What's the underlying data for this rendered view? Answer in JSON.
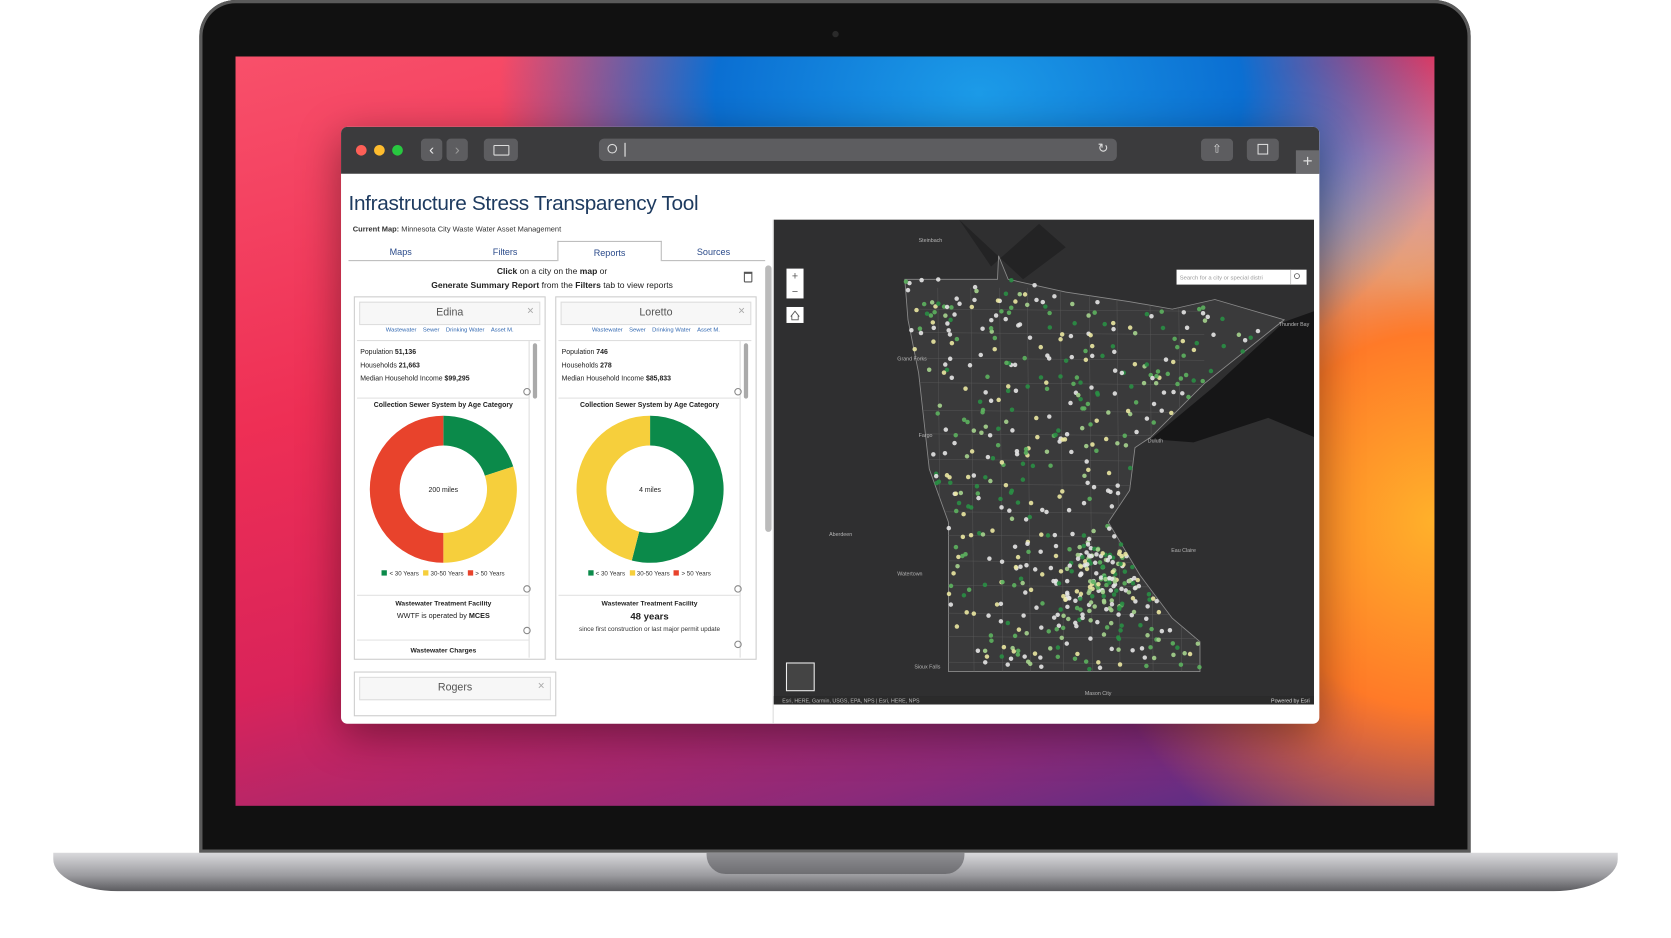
{
  "app": {
    "title": "Infrastructure Stress Transparency Tool",
    "current_map_label": "Current Map:",
    "current_map": "Minnesota City Waste Water Asset Management",
    "tabs": [
      "Maps",
      "Filters",
      "Reports",
      "Sources"
    ],
    "active_tab": 2,
    "instructions": [
      [
        {
          "text": "Click",
          "bold": true
        },
        {
          "text": " on a city on the ",
          "bold": false
        },
        {
          "text": "map",
          "bold": true
        },
        {
          "text": " or",
          "bold": false
        }
      ],
      [
        {
          "text": "Generate Summary Report",
          "bold": true
        },
        {
          "text": " from the ",
          "bold": false
        },
        {
          "text": "Filters",
          "bold": true
        },
        {
          "text": " tab to view reports",
          "bold": false
        }
      ]
    ]
  },
  "cards": [
    {
      "name": "Edina",
      "links": [
        "Wastewater",
        "Sewer",
        "Drinking Water",
        "Asset M."
      ],
      "stats": [
        {
          "label": "Population",
          "value": "51,136"
        },
        {
          "label": "Households",
          "value": "21,663"
        },
        {
          "label": "Median Household Income",
          "value": "$99,295"
        }
      ],
      "chart": {
        "type": "donut",
        "title": "Collection Sewer System by Age Category",
        "center_label": "200 miles",
        "categories": [
          "< 30 Years",
          "30-50 Years",
          "> 50 Years"
        ],
        "colors": [
          "#0b8a4a",
          "#f6cf3c",
          "#e8432c"
        ],
        "values": [
          20,
          30,
          50
        ]
      },
      "facility": {
        "title": "Wastewater Treatment Facility",
        "text": [
          {
            "text": "WWTF is operated by ",
            "bold": false
          },
          {
            "text": "MCES",
            "bold": true
          }
        ]
      },
      "next_section": "Wastewater Charges"
    },
    {
      "name": "Loretto",
      "links": [
        "Wastewater",
        "Sewer",
        "Drinking Water",
        "Asset M."
      ],
      "stats": [
        {
          "label": "Population",
          "value": "746"
        },
        {
          "label": "Households",
          "value": "278"
        },
        {
          "label": "Median Household Income",
          "value": "$85,833"
        }
      ],
      "chart": {
        "type": "donut",
        "title": "Collection Sewer System by Age Category",
        "center_label": "4 miles",
        "categories": [
          "< 30 Years",
          "30-50 Years",
          "> 50 Years"
        ],
        "colors": [
          "#0b8a4a",
          "#f6cf3c",
          "#e8432c"
        ],
        "values": [
          54,
          46,
          0
        ]
      },
      "facility": {
        "title": "Wastewater Treatment Facility",
        "value": "48 years",
        "note": "since first construction or last major permit update"
      }
    },
    {
      "name": "Rogers"
    }
  ],
  "map": {
    "search_placeholder": "Search for a city or special distri",
    "places": [
      "Steinbach",
      "Thunder Bay",
      "Grand Forks",
      "Fargo",
      "Duluth",
      "Aberdeen",
      "Watertown",
      "Sioux Falls",
      "Eau Claire",
      "Mason City"
    ],
    "attribution": "Esri, HERE, Garmin, USGS, EPA, NPS | Esri, HERE, NPS",
    "powered_by": "Powered by Esri"
  }
}
